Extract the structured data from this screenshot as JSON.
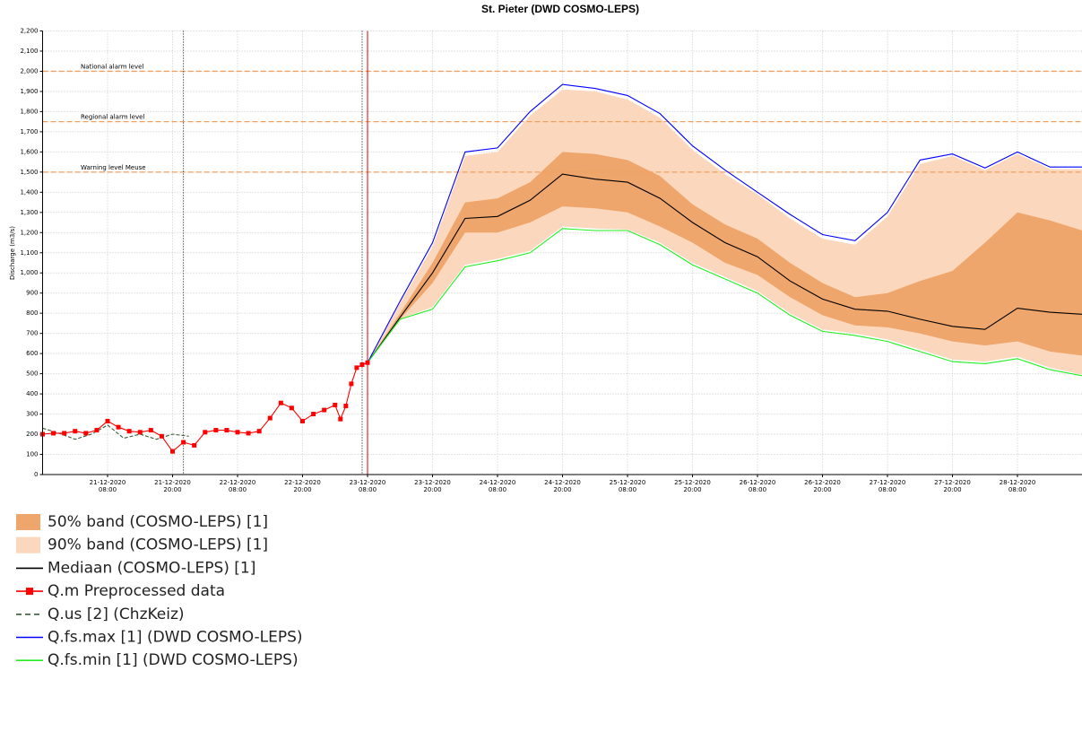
{
  "chart_data": {
    "type": "timeseries",
    "title": "St. Pieter (DWD COSMO-LEPS)",
    "y_label": "Discharge (m3/s)",
    "xlim": [
      "2020-12-20 20:00",
      "2020-12-28 20:00"
    ],
    "xticks": [
      {
        "value": "2020-12-21 08:00",
        "label": [
          "21-12-2020",
          "08:00"
        ]
      },
      {
        "value": "2020-12-21 20:00",
        "label": [
          "21-12-2020",
          "20:00"
        ]
      },
      {
        "value": "2020-12-22 08:00",
        "label": [
          "22-12-2020",
          "08:00"
        ]
      },
      {
        "value": "2020-12-22 20:00",
        "label": [
          "22-12-2020",
          "20:00"
        ]
      },
      {
        "value": "2020-12-23 08:00",
        "label": [
          "23-12-2020",
          "08:00"
        ]
      },
      {
        "value": "2020-12-23 20:00",
        "label": [
          "23-12-2020",
          "20:00"
        ]
      },
      {
        "value": "2020-12-24 08:00",
        "label": [
          "24-12-2020",
          "08:00"
        ]
      },
      {
        "value": "2020-12-24 20:00",
        "label": [
          "24-12-2020",
          "20:00"
        ]
      },
      {
        "value": "2020-12-25 08:00",
        "label": [
          "25-12-2020",
          "08:00"
        ]
      },
      {
        "value": "2020-12-25 20:00",
        "label": [
          "25-12-2020",
          "20:00"
        ]
      },
      {
        "value": "2020-12-26 08:00",
        "label": [
          "26-12-2020",
          "08:00"
        ]
      },
      {
        "value": "2020-12-26 20:00",
        "label": [
          "26-12-2020",
          "20:00"
        ]
      },
      {
        "value": "2020-12-27 08:00",
        "label": [
          "27-12-2020",
          "08:00"
        ]
      },
      {
        "value": "2020-12-27 20:00",
        "label": [
          "27-12-2020",
          "20:00"
        ]
      },
      {
        "value": "2020-12-28 08:00",
        "label": [
          "28-12-2020",
          "08:00"
        ]
      }
    ],
    "ylim": [
      0,
      2200
    ],
    "yticks": [
      0,
      100,
      200,
      300,
      400,
      500,
      600,
      700,
      800,
      900,
      {
        "value": 1000,
        "label": "1,000"
      },
      {
        "value": 1100,
        "label": "1,100"
      },
      {
        "value": 1200,
        "label": "1,200"
      },
      {
        "value": 1300,
        "label": "1,300"
      },
      {
        "value": 1400,
        "label": "1,400"
      },
      {
        "value": 1500,
        "label": "1,500"
      },
      {
        "value": 1600,
        "label": "1,600"
      },
      {
        "value": 1700,
        "label": "1,700"
      },
      {
        "value": 1800,
        "label": "1,800"
      },
      {
        "value": 1900,
        "label": "1,900"
      },
      {
        "value": 2000,
        "label": "2,000"
      },
      {
        "value": 2100,
        "label": "2,100"
      },
      {
        "value": 2200,
        "label": "2,200"
      }
    ],
    "grid": true,
    "levels": [
      {
        "label": "National alarm level",
        "value": 2000,
        "color": "#f0a060"
      },
      {
        "label": "Regional alarm level",
        "value": 1750,
        "color": "#f0a060"
      },
      {
        "label": "Warning level Meuse",
        "value": 1500,
        "color": "#f0a060"
      }
    ],
    "vlines": [
      {
        "x": "2020-12-21 22:00",
        "color": "#000000",
        "dashed": true
      },
      {
        "x": "2020-12-23 07:00",
        "color": "#000000",
        "dashed": true
      },
      {
        "x": "2020-12-23 08:00",
        "color": "#e00000",
        "dashed": false
      }
    ],
    "series": [
      {
        "name": "50% band (COSMO-LEPS) [1]",
        "kind": "band",
        "color": "#eea66c",
        "x": [
          "2020-12-23 08:00",
          "2020-12-23 14:00",
          "2020-12-23 20:00",
          "2020-12-24 02:00",
          "2020-12-24 08:00",
          "2020-12-24 14:00",
          "2020-12-24 20:00",
          "2020-12-25 02:00",
          "2020-12-25 08:00",
          "2020-12-25 14:00",
          "2020-12-25 20:00",
          "2020-12-26 02:00",
          "2020-12-26 08:00",
          "2020-12-26 14:00",
          "2020-12-26 20:00",
          "2020-12-27 02:00",
          "2020-12-27 08:00",
          "2020-12-27 14:00",
          "2020-12-27 20:00",
          "2020-12-28 02:00",
          "2020-12-28 08:00",
          "2020-12-28 14:00",
          "2020-12-28 20:00"
        ],
        "lower": [
          555,
          770,
          950,
          1200,
          1200,
          1250,
          1330,
          1320,
          1300,
          1230,
          1150,
          1050,
          990,
          880,
          790,
          740,
          730,
          700,
          660,
          640,
          660,
          610,
          590
        ],
        "upper": [
          555,
          800,
          1050,
          1350,
          1370,
          1450,
          1600,
          1590,
          1560,
          1480,
          1340,
          1240,
          1170,
          1050,
          950,
          880,
          900,
          960,
          1010,
          1150,
          1300,
          1260,
          1210
        ]
      },
      {
        "name": "90% band (COSMO-LEPS) [1]",
        "kind": "band",
        "color": "#fbd8bd",
        "x": [
          "2020-12-23 08:00",
          "2020-12-23 14:00",
          "2020-12-23 20:00",
          "2020-12-24 02:00",
          "2020-12-24 08:00",
          "2020-12-24 14:00",
          "2020-12-24 20:00",
          "2020-12-25 02:00",
          "2020-12-25 08:00",
          "2020-12-25 14:00",
          "2020-12-25 20:00",
          "2020-12-26 02:00",
          "2020-12-26 08:00",
          "2020-12-26 14:00",
          "2020-12-26 20:00",
          "2020-12-27 02:00",
          "2020-12-27 08:00",
          "2020-12-27 14:00",
          "2020-12-27 20:00",
          "2020-12-28 02:00",
          "2020-12-28 08:00",
          "2020-12-28 14:00",
          "2020-12-28 20:00"
        ],
        "lower": [
          555,
          772,
          830,
          1040,
          1070,
          1110,
          1230,
          1220,
          1215,
          1150,
          1050,
          980,
          910,
          800,
          720,
          700,
          670,
          620,
          570,
          560,
          585,
          530,
          495
        ],
        "upper": [
          555,
          850,
          1130,
          1580,
          1600,
          1780,
          1910,
          1900,
          1860,
          1770,
          1610,
          1490,
          1390,
          1270,
          1170,
          1140,
          1280,
          1540,
          1580,
          1510,
          1590,
          1515,
          1515
        ]
      },
      {
        "name": "Mediaan (COSMO-LEPS) [1]",
        "kind": "line",
        "color": "#000000",
        "x": [
          "2020-12-23 08:00",
          "2020-12-23 14:00",
          "2020-12-23 20:00",
          "2020-12-24 02:00",
          "2020-12-24 08:00",
          "2020-12-24 14:00",
          "2020-12-24 20:00",
          "2020-12-25 02:00",
          "2020-12-25 08:00",
          "2020-12-25 14:00",
          "2020-12-25 20:00",
          "2020-12-26 02:00",
          "2020-12-26 08:00",
          "2020-12-26 14:00",
          "2020-12-26 20:00",
          "2020-12-27 02:00",
          "2020-12-27 08:00",
          "2020-12-27 14:00",
          "2020-12-27 20:00",
          "2020-12-28 02:00",
          "2020-12-28 08:00",
          "2020-12-28 14:00",
          "2020-12-28 20:00"
        ],
        "values": [
          555,
          780,
          1000,
          1270,
          1280,
          1360,
          1490,
          1465,
          1450,
          1370,
          1250,
          1150,
          1080,
          960,
          870,
          820,
          810,
          770,
          735,
          720,
          825,
          805,
          795
        ]
      },
      {
        "name": "Q.m Preprocessed data",
        "kind": "markers",
        "color": "#ff0000",
        "x": [
          "2020-12-20 20:00",
          "2020-12-20 22:00",
          "2020-12-21 00:00",
          "2020-12-21 02:00",
          "2020-12-21 04:00",
          "2020-12-21 06:00",
          "2020-12-21 08:00",
          "2020-12-21 10:00",
          "2020-12-21 12:00",
          "2020-12-21 14:00",
          "2020-12-21 16:00",
          "2020-12-21 18:00",
          "2020-12-21 20:00",
          "2020-12-21 22:00",
          "2020-12-22 00:00",
          "2020-12-22 02:00",
          "2020-12-22 04:00",
          "2020-12-22 06:00",
          "2020-12-22 08:00",
          "2020-12-22 10:00",
          "2020-12-22 12:00",
          "2020-12-22 14:00",
          "2020-12-22 16:00",
          "2020-12-22 18:00",
          "2020-12-22 20:00",
          "2020-12-22 22:00",
          "2020-12-23 00:00",
          "2020-12-23 02:00",
          "2020-12-23 03:00",
          "2020-12-23 04:00",
          "2020-12-23 05:00",
          "2020-12-23 06:00",
          "2020-12-23 07:00",
          "2020-12-23 08:00"
        ],
        "values": [
          200,
          205,
          205,
          215,
          205,
          220,
          265,
          235,
          215,
          210,
          220,
          190,
          115,
          160,
          145,
          210,
          220,
          220,
          210,
          205,
          215,
          280,
          355,
          330,
          265,
          300,
          320,
          345,
          275,
          340,
          450,
          530,
          545,
          555
        ]
      },
      {
        "name": "Q.us [2] (ChzKeiz)",
        "kind": "dashed",
        "color": "#3c5a3c",
        "x": [
          "2020-12-20 20:00",
          "2020-12-20 23:00",
          "2020-12-21 02:00",
          "2020-12-21 05:00",
          "2020-12-21 08:00",
          "2020-12-21 11:00",
          "2020-12-21 14:00",
          "2020-12-21 17:00",
          "2020-12-21 20:00",
          "2020-12-21 23:00"
        ],
        "values": [
          230,
          205,
          175,
          200,
          245,
          180,
          200,
          175,
          200,
          190
        ]
      },
      {
        "name": "Q.fs.max [1] (DWD COSMO-LEPS)",
        "kind": "line",
        "color": "#0000ff",
        "x": [
          "2020-12-23 08:00",
          "2020-12-23 14:00",
          "2020-12-23 20:00",
          "2020-12-24 02:00",
          "2020-12-24 08:00",
          "2020-12-24 14:00",
          "2020-12-24 20:00",
          "2020-12-25 02:00",
          "2020-12-25 08:00",
          "2020-12-25 14:00",
          "2020-12-25 20:00",
          "2020-12-26 02:00",
          "2020-12-26 08:00",
          "2020-12-26 14:00",
          "2020-12-26 20:00",
          "2020-12-27 02:00",
          "2020-12-27 08:00",
          "2020-12-27 14:00",
          "2020-12-27 20:00",
          "2020-12-28 02:00",
          "2020-12-28 08:00",
          "2020-12-28 14:00",
          "2020-12-28 20:00"
        ],
        "values": [
          555,
          860,
          1150,
          1600,
          1620,
          1800,
          1935,
          1915,
          1880,
          1790,
          1630,
          1510,
          1400,
          1290,
          1190,
          1160,
          1300,
          1560,
          1590,
          1520,
          1600,
          1525,
          1525
        ]
      },
      {
        "name": "Q.fs.min [1] (DWD COSMO-LEPS)",
        "kind": "line",
        "color": "#22ee22",
        "x": [
          "2020-12-23 08:00",
          "2020-12-23 14:00",
          "2020-12-23 20:00",
          "2020-12-24 02:00",
          "2020-12-24 08:00",
          "2020-12-24 14:00",
          "2020-12-24 20:00",
          "2020-12-25 02:00",
          "2020-12-25 08:00",
          "2020-12-25 14:00",
          "2020-12-25 20:00",
          "2020-12-26 02:00",
          "2020-12-26 08:00",
          "2020-12-26 14:00",
          "2020-12-26 20:00",
          "2020-12-27 02:00",
          "2020-12-27 08:00",
          "2020-12-27 14:00",
          "2020-12-27 20:00",
          "2020-12-28 02:00",
          "2020-12-28 08:00",
          "2020-12-28 14:00",
          "2020-12-28 20:00"
        ],
        "values": [
          555,
          770,
          820,
          1030,
          1060,
          1100,
          1220,
          1210,
          1210,
          1140,
          1040,
          970,
          900,
          790,
          710,
          690,
          660,
          610,
          560,
          550,
          575,
          520,
          490
        ]
      }
    ]
  }
}
